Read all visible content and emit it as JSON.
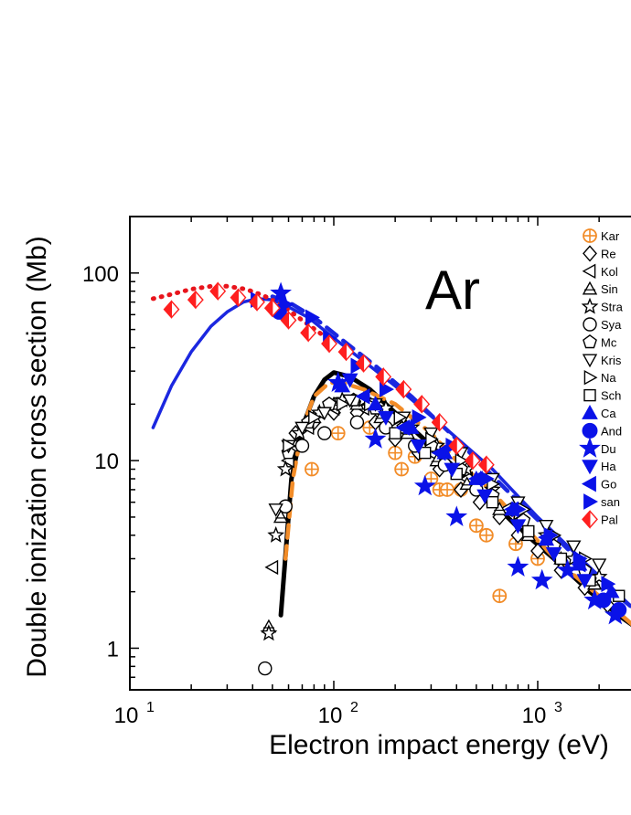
{
  "chart_data": {
    "type": "scatter",
    "title": "",
    "annotation": "Ar",
    "xlabel": "Electron impact energy (eV)",
    "ylabel": "Double ionization cross section (Mb)",
    "xscale": "log",
    "yscale": "log",
    "xlim": [
      10,
      3000
    ],
    "ylim": [
      0.6,
      200
    ],
    "x_ticks": [
      {
        "value": 10,
        "base": "10",
        "exp": "1"
      },
      {
        "value": 100,
        "base": "10",
        "exp": "2"
      },
      {
        "value": 1000,
        "base": "10",
        "exp": "3"
      }
    ],
    "y_ticks": [
      {
        "value": 1,
        "label": "1"
      },
      {
        "value": 10,
        "label": "10"
      },
      {
        "value": 100,
        "label": "100"
      }
    ],
    "legend_position": "top-right",
    "series": [
      {
        "name": "Kar",
        "marker": "circle-plus",
        "color": "#f28c28",
        "points": [
          [
            78,
            9
          ],
          [
            105,
            14
          ],
          [
            150,
            15
          ],
          [
            200,
            11
          ],
          [
            215,
            9
          ],
          [
            250,
            10.5
          ],
          [
            300,
            8
          ],
          [
            330,
            7
          ],
          [
            360,
            7
          ],
          [
            420,
            7
          ],
          [
            500,
            4.5
          ],
          [
            560,
            4
          ],
          [
            650,
            1.9
          ],
          [
            780,
            3.6
          ],
          [
            1000,
            3
          ]
        ]
      },
      {
        "name": "Re",
        "marker": "diamond",
        "color": "#000000",
        "points": [
          [
            65,
            14
          ],
          [
            80,
            16
          ],
          [
            100,
            18
          ],
          [
            130,
            18
          ],
          [
            160,
            16
          ],
          [
            200,
            13
          ],
          [
            260,
            11
          ],
          [
            330,
            9
          ],
          [
            420,
            7
          ],
          [
            520,
            6
          ],
          [
            650,
            5
          ],
          [
            800,
            4
          ],
          [
            1000,
            3.3
          ],
          [
            1300,
            2.6
          ],
          [
            1700,
            2.1
          ],
          [
            2200,
            1.7
          ]
        ]
      },
      {
        "name": "Kol",
        "marker": "triangle-left",
        "color": "#000000",
        "points": [
          [
            50,
            2.7
          ],
          [
            60,
            10
          ],
          [
            75,
            15
          ],
          [
            100,
            19
          ],
          [
            140,
            19
          ],
          [
            200,
            15
          ],
          [
            300,
            11
          ],
          [
            450,
            8
          ],
          [
            700,
            5.5
          ]
        ]
      },
      {
        "name": "Sin",
        "marker": "triangle-up-bar",
        "color": "#000000",
        "points": [
          [
            48,
            1.3
          ],
          [
            55,
            5
          ],
          [
            65,
            12
          ],
          [
            80,
            17
          ],
          [
            100,
            20
          ],
          [
            130,
            20
          ],
          [
            170,
            17
          ],
          [
            230,
            14
          ],
          [
            320,
            10
          ],
          [
            450,
            7.5
          ],
          [
            650,
            5.5
          ],
          [
            900,
            4
          ],
          [
            1300,
            3
          ],
          [
            1900,
            2.2
          ]
        ]
      },
      {
        "name": "Stra",
        "marker": "star-open",
        "color": "#000000",
        "points": [
          [
            48,
            1.2
          ],
          [
            52,
            4
          ],
          [
            58,
            9
          ],
          [
            68,
            14
          ],
          [
            85,
            18
          ],
          [
            110,
            21
          ],
          [
            140,
            21
          ],
          [
            180,
            19
          ],
          [
            240,
            15
          ],
          [
            320,
            12
          ],
          [
            450,
            9
          ],
          [
            600,
            7
          ],
          [
            800,
            5.2
          ],
          [
            1100,
            4
          ],
          [
            1500,
            3
          ],
          [
            2000,
            2.4
          ]
        ]
      },
      {
        "name": "Sya",
        "marker": "circle-open",
        "color": "#000000",
        "points": [
          [
            46,
            0.78
          ],
          [
            58,
            5.7
          ],
          [
            70,
            12
          ],
          [
            90,
            14
          ],
          [
            130,
            16
          ],
          [
            180,
            15
          ],
          [
            250,
            12
          ],
          [
            350,
            9.5
          ],
          [
            500,
            7
          ]
        ]
      },
      {
        "name": "Mc",
        "marker": "pentagon-open",
        "color": "#000000",
        "points": [
          [
            60,
            11
          ],
          [
            75,
            16
          ],
          [
            95,
            20
          ],
          [
            125,
            21
          ],
          [
            160,
            19
          ],
          [
            220,
            15
          ],
          [
            300,
            12
          ],
          [
            420,
            9
          ],
          [
            600,
            6.5
          ],
          [
            850,
            4.8
          ],
          [
            1200,
            3.5
          ],
          [
            1700,
            2.6
          ]
        ]
      },
      {
        "name": "Kris",
        "marker": "triangle-down-open",
        "color": "#000000",
        "points": [
          [
            52,
            5.5
          ],
          [
            60,
            12
          ],
          [
            70,
            15
          ],
          [
            90,
            18
          ],
          [
            120,
            21
          ],
          [
            160,
            20
          ],
          [
            220,
            17
          ],
          [
            300,
            14
          ],
          [
            420,
            11
          ],
          [
            600,
            8
          ],
          [
            800,
            6
          ],
          [
            1100,
            4.5
          ],
          [
            1500,
            3.5
          ],
          [
            2000,
            2.8
          ]
        ]
      },
      {
        "name": "Na",
        "marker": "triangle-right-open",
        "color": "#000000",
        "points": [
          [
            60,
            12
          ],
          [
            80,
            17
          ],
          [
            110,
            20
          ],
          [
            150,
            20
          ],
          [
            210,
            17
          ],
          [
            300,
            13
          ],
          [
            420,
            10
          ],
          [
            600,
            7.5
          ],
          [
            850,
            5.5
          ],
          [
            1200,
            4
          ],
          [
            1700,
            3
          ]
        ]
      },
      {
        "name": "Sch",
        "marker": "square-open",
        "color": "#000000",
        "points": [
          [
            200,
            14
          ],
          [
            280,
            11
          ],
          [
            400,
            8.5
          ],
          [
            600,
            6
          ],
          [
            900,
            4.2
          ],
          [
            1300,
            3
          ],
          [
            1800,
            2.3
          ],
          [
            2500,
            1.9
          ]
        ]
      },
      {
        "name": "Ca",
        "marker": "triangle-up-filled",
        "color": "#0a12e8",
        "points": [
          [
            110,
            25
          ],
          [
            160,
            20
          ],
          [
            240,
            15
          ],
          [
            350,
            11
          ],
          [
            500,
            8
          ],
          [
            750,
            5.5
          ],
          [
            1100,
            3.8
          ],
          [
            1600,
            2.8
          ],
          [
            2300,
            2
          ]
        ]
      },
      {
        "name": "And",
        "marker": "circle-filled",
        "color": "#0a12e8",
        "points": [
          [
            54,
            62
          ],
          [
            2100,
            1.8
          ],
          [
            2500,
            1.6
          ]
        ]
      },
      {
        "name": "Du",
        "marker": "star-filled",
        "color": "#0a12e8",
        "points": [
          [
            55,
            78
          ],
          [
            105,
            26
          ],
          [
            160,
            13
          ],
          [
            280,
            7.3
          ],
          [
            400,
            5
          ],
          [
            800,
            2.7
          ],
          [
            1050,
            2.3
          ],
          [
            1400,
            2.6
          ],
          [
            1900,
            1.8
          ],
          [
            2400,
            1.5
          ]
        ]
      },
      {
        "name": "Ha",
        "marker": "triangle-down-filled",
        "color": "#0a12e8",
        "points": [
          [
            120,
            27
          ],
          [
            180,
            17
          ],
          [
            260,
            12
          ],
          [
            380,
            9
          ],
          [
            550,
            6.5
          ],
          [
            800,
            4.5
          ],
          [
            1200,
            3.2
          ],
          [
            1700,
            2.3
          ]
        ]
      },
      {
        "name": "Go",
        "marker": "triangle-left-filled",
        "color": "#0a12e8",
        "points": [
          [
            140,
            22
          ],
          [
            220,
            15
          ],
          [
            330,
            11
          ],
          [
            500,
            8
          ],
          [
            750,
            5.5
          ],
          [
            1100,
            3.9
          ],
          [
            1600,
            2.8
          ]
        ]
      },
      {
        "name": "san",
        "marker": "triangle-right-filled",
        "color": "#0a12e8",
        "points": [
          [
            42,
            72
          ],
          [
            58,
            68
          ],
          [
            78,
            58
          ],
          [
            95,
            45
          ],
          [
            130,
            32
          ],
          [
            180,
            24
          ],
          [
            260,
            17
          ],
          [
            380,
            12
          ],
          [
            560,
            8
          ],
          [
            800,
            5.5
          ],
          [
            1150,
            4
          ],
          [
            1600,
            3
          ],
          [
            2200,
            2.2
          ]
        ]
      },
      {
        "name": "Pal",
        "marker": "diamond-half",
        "color": "#ff1f1f",
        "points": [
          [
            16,
            64
          ],
          [
            21,
            72
          ],
          [
            27,
            80
          ],
          [
            34,
            74
          ],
          [
            42,
            70
          ],
          [
            50,
            65
          ],
          [
            60,
            56
          ],
          [
            75,
            48
          ],
          [
            95,
            42
          ],
          [
            115,
            38
          ],
          [
            140,
            33
          ],
          [
            175,
            28
          ],
          [
            220,
            24
          ],
          [
            270,
            20
          ],
          [
            330,
            16
          ],
          [
            400,
            12
          ],
          [
            480,
            10
          ],
          [
            560,
            9.5
          ]
        ]
      }
    ],
    "curves": [
      {
        "name": "black-solid",
        "style": "solid",
        "color": "#000000",
        "points": [
          [
            55,
            1.5
          ],
          [
            62,
            8
          ],
          [
            70,
            15
          ],
          [
            80,
            22
          ],
          [
            90,
            27
          ],
          [
            100,
            29.5
          ],
          [
            120,
            28
          ],
          [
            150,
            24
          ],
          [
            200,
            18
          ],
          [
            300,
            12
          ],
          [
            400,
            9
          ],
          [
            600,
            6
          ],
          [
            800,
            4.4
          ],
          [
            1200,
            3
          ],
          [
            1800,
            2
          ],
          [
            2600,
            1.45
          ],
          [
            3000,
            1.3
          ]
        ]
      },
      {
        "name": "orange-dashed",
        "style": "dashed",
        "color": "#f28c28",
        "points": [
          [
            58,
            3
          ],
          [
            63,
            8
          ],
          [
            70,
            15
          ],
          [
            80,
            22
          ],
          [
            95,
            26
          ],
          [
            110,
            26
          ],
          [
            140,
            24
          ],
          [
            200,
            20
          ],
          [
            300,
            14
          ],
          [
            400,
            10
          ],
          [
            600,
            6.8
          ],
          [
            900,
            4.2
          ],
          [
            1300,
            2.8
          ],
          [
            2000,
            1.9
          ],
          [
            3000,
            1.3
          ]
        ]
      },
      {
        "name": "blue-solid",
        "style": "solid",
        "color": "#1b27e0",
        "points": [
          [
            13,
            15
          ],
          [
            16,
            25
          ],
          [
            20,
            38
          ],
          [
            25,
            52
          ],
          [
            30,
            62
          ],
          [
            36,
            70
          ],
          [
            42,
            73
          ],
          [
            50,
            72
          ],
          [
            60,
            66
          ],
          [
            75,
            58
          ],
          [
            100,
            45
          ],
          [
            150,
            32
          ],
          [
            220,
            23
          ],
          [
            350,
            15
          ],
          [
            600,
            9
          ],
          [
            1000,
            5
          ],
          [
            1800,
            2.7
          ],
          [
            3000,
            1.6
          ]
        ]
      },
      {
        "name": "blue-dashed",
        "style": "dashed",
        "color": "#1b27e0",
        "points": [
          [
            50,
            75
          ],
          [
            60,
            70
          ],
          [
            80,
            58
          ],
          [
            110,
            44
          ],
          [
            160,
            32
          ],
          [
            240,
            22
          ],
          [
            400,
            13
          ],
          [
            700,
            7
          ],
          [
            1200,
            4
          ],
          [
            2000,
            2.3
          ],
          [
            3000,
            1.6
          ]
        ]
      },
      {
        "name": "red-dotted",
        "style": "dotted",
        "color": "#e8141c",
        "points": [
          [
            13,
            73
          ],
          [
            16,
            77
          ],
          [
            20,
            82
          ],
          [
            25,
            85
          ],
          [
            30,
            85
          ],
          [
            37,
            82
          ],
          [
            45,
            76
          ],
          [
            55,
            68
          ],
          [
            70,
            56
          ],
          [
            90,
            46
          ]
        ]
      }
    ]
  }
}
